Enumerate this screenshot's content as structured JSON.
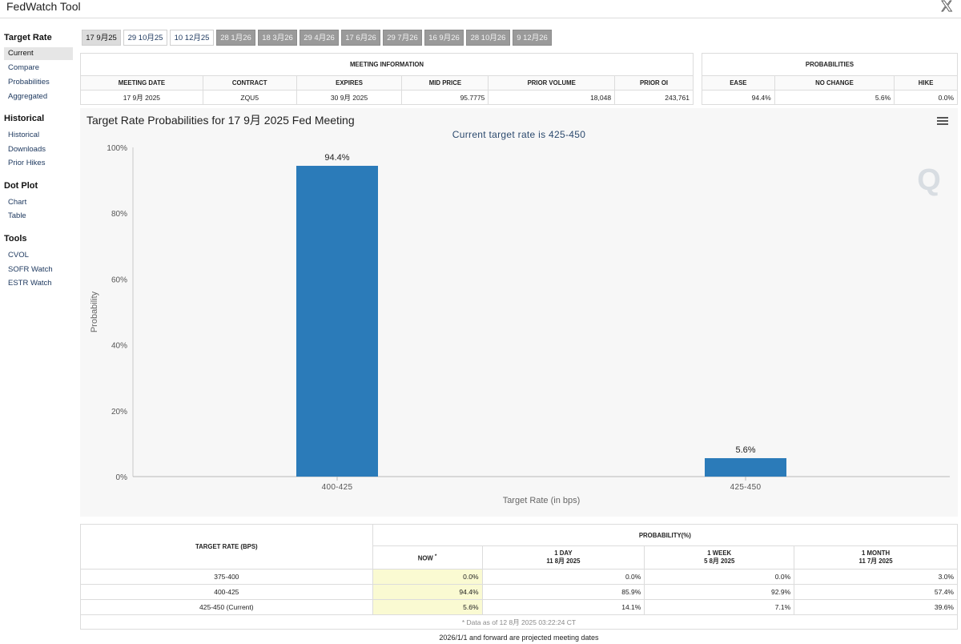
{
  "app": {
    "title": "FedWatch Tool"
  },
  "sidebar": {
    "sections": [
      {
        "title": "Target Rate",
        "items": [
          "Current",
          "Compare",
          "Probabilities",
          "Aggregated"
        ]
      },
      {
        "title": "Historical",
        "items": [
          "Historical",
          "Downloads",
          "Prior Hikes"
        ]
      },
      {
        "title": "Dot Plot",
        "items": [
          "Chart",
          "Table"
        ]
      },
      {
        "title": "Tools",
        "items": [
          "CVOL",
          "SOFR Watch",
          "ESTR Watch"
        ]
      }
    ],
    "active": "Current"
  },
  "tabs": [
    "17 9月25",
    "29 10月25",
    "10 12月25",
    "28 1月26",
    "18 3月26",
    "29 4月26",
    "17 6月26",
    "29 7月26",
    "16 9月26",
    "28 10月26",
    "9 12月26"
  ],
  "meeting_info": {
    "header": "MEETING INFORMATION",
    "columns": [
      "MEETING DATE",
      "CONTRACT",
      "EXPIRES",
      "MID PRICE",
      "PRIOR VOLUME",
      "PRIOR OI"
    ],
    "row": [
      "17 9月 2025",
      "ZQU5",
      "30 9月 2025",
      "95.7775",
      "18,048",
      "243,761"
    ]
  },
  "probabilities": {
    "header": "PROBABILITIES",
    "columns": [
      "EASE",
      "NO CHANGE",
      "HIKE"
    ],
    "row": [
      "94.4%",
      "5.6%",
      "0.0%"
    ]
  },
  "chart": {
    "title": "Target Rate Probabilities for 17 9月 2025 Fed Meeting",
    "subtitle": "Current target rate is 425-450",
    "watermark": "Q"
  },
  "chart_data": {
    "type": "bar",
    "categories": [
      "400-425",
      "425-450"
    ],
    "values": [
      94.4,
      5.6
    ],
    "data_labels": [
      "94.4%",
      "5.6%"
    ],
    "xlabel": "Target Rate (in bps)",
    "ylabel": "Probability",
    "ylim": [
      0,
      100
    ],
    "yticks": [
      "0%",
      "20%",
      "40%",
      "60%",
      "80%",
      "100%"
    ],
    "bar_color": "#2b7bb9",
    "grid": false
  },
  "prob_table": {
    "target_header": "TARGET RATE (BPS)",
    "prob_header": "PROBABILITY(%)",
    "columns": [
      {
        "label": "NOW",
        "marker": "*",
        "date": ""
      },
      {
        "label": "1 DAY",
        "date": "11 8月 2025"
      },
      {
        "label": "1 WEEK",
        "date": "5 8月 2025"
      },
      {
        "label": "1 MONTH",
        "date": "11 7月 2025"
      }
    ],
    "rows": [
      {
        "rate": "375-400",
        "values": [
          "0.0%",
          "0.0%",
          "0.0%",
          "3.0%"
        ]
      },
      {
        "rate": "400-425",
        "values": [
          "94.4%",
          "85.9%",
          "92.9%",
          "57.4%"
        ]
      },
      {
        "rate": "425-450 (Current)",
        "values": [
          "5.6%",
          "14.1%",
          "7.1%",
          "39.6%"
        ]
      }
    ],
    "note": "* Data as of 12 8月 2025 03:22:24 CT"
  },
  "footer": "2026/1/1 and forward are projected meeting dates"
}
